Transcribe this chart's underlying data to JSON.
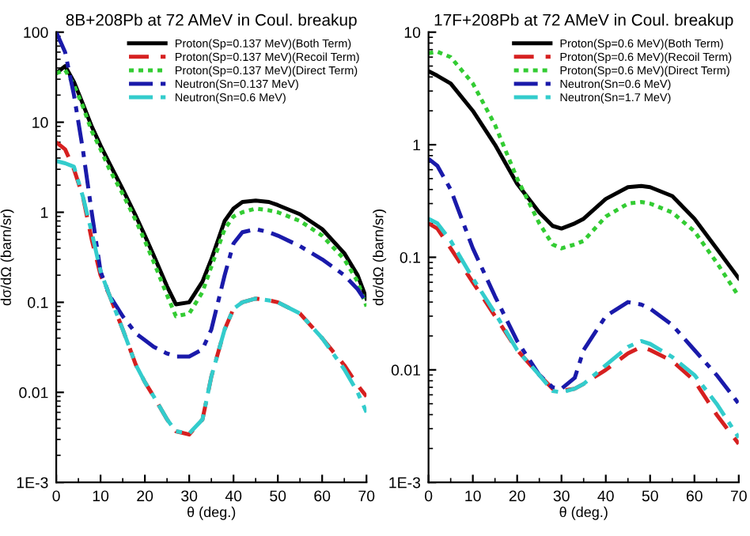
{
  "chart_data": [
    {
      "type": "line",
      "title": "8B+208Pb at 72 AMeV in Coul. breakup",
      "xlabel": "θ (deg.)",
      "ylabel": "dσ/dΩ (barn/sr)",
      "log": "y",
      "xlim": [
        0,
        70
      ],
      "xticks": [
        0,
        10,
        20,
        30,
        40,
        50,
        60,
        70
      ],
      "ylim": [
        0.001,
        100
      ],
      "yticks": [
        {
          "value": 0.001,
          "label": "1E-3"
        },
        0.01,
        0.1,
        1,
        10,
        100
      ],
      "legend": "top right",
      "grid": false,
      "x": [
        0,
        2,
        4,
        6,
        8,
        10,
        12,
        15,
        18,
        20,
        22,
        25,
        27,
        30,
        33,
        35,
        38,
        40,
        42,
        45,
        48,
        50,
        55,
        60,
        65,
        68,
        70
      ],
      "series": [
        {
          "name": "Proton(Sp=0.137 MeV)(Both Term)",
          "color": "#000000",
          "line_style": "solid",
          "values": [
            35,
            42,
            28,
            16,
            9,
            5.5,
            3.5,
            1.8,
            0.9,
            0.55,
            0.33,
            0.15,
            0.095,
            0.1,
            0.17,
            0.3,
            0.8,
            1.1,
            1.3,
            1.35,
            1.3,
            1.2,
            0.95,
            0.65,
            0.35,
            0.2,
            0.11
          ]
        },
        {
          "name": "Proton(Sp=0.137 MeV)(Recoil Term)",
          "color": "#d62020",
          "line_style": "dashed",
          "values": [
            6,
            5,
            3,
            1.5,
            0.5,
            0.2,
            0.12,
            0.05,
            0.02,
            0.013,
            0.009,
            0.005,
            0.0037,
            0.0034,
            0.005,
            0.015,
            0.05,
            0.085,
            0.1,
            0.11,
            0.105,
            0.1,
            0.075,
            0.04,
            0.02,
            0.012,
            0.009
          ]
        },
        {
          "name": "Proton(Sp=0.137 MeV)(Direct Term)",
          "color": "#33cc33",
          "line_style": "dotted",
          "values": [
            35,
            38,
            26,
            15,
            8,
            5,
            3,
            1.6,
            0.8,
            0.48,
            0.28,
            0.12,
            0.07,
            0.075,
            0.13,
            0.25,
            0.65,
            0.9,
            1.0,
            1.1,
            1.05,
            1.0,
            0.8,
            0.55,
            0.3,
            0.17,
            0.09
          ]
        },
        {
          "name": "Neutron(Sn=0.137 MeV)",
          "color": "#1a1aaa",
          "line_style": "dashdot",
          "values": [
            100,
            60,
            20,
            5,
            1,
            0.22,
            0.12,
            0.07,
            0.045,
            0.038,
            0.032,
            0.027,
            0.025,
            0.025,
            0.03,
            0.05,
            0.2,
            0.45,
            0.6,
            0.65,
            0.6,
            0.55,
            0.42,
            0.3,
            0.2,
            0.14,
            0.1
          ]
        },
        {
          "name": "Neutron(Sn=0.6 MeV)",
          "color": "#33cccc",
          "line_style": "dashdot",
          "values": [
            3.7,
            3.5,
            3.2,
            1.5,
            0.6,
            0.22,
            0.12,
            0.05,
            0.02,
            0.013,
            0.009,
            0.005,
            0.0037,
            0.0035,
            0.005,
            0.015,
            0.05,
            0.085,
            0.1,
            0.11,
            0.105,
            0.1,
            0.075,
            0.04,
            0.018,
            0.01,
            0.006
          ]
        }
      ]
    },
    {
      "type": "line",
      "title": "17F+208Pb at 72 AMeV in Coul. breakup",
      "xlabel": "θ (deg.)",
      "ylabel": "dσ/dΩ (barn/sr)",
      "log": "y",
      "xlim": [
        0,
        70
      ],
      "xticks": [
        0,
        10,
        20,
        30,
        40,
        50,
        60,
        70
      ],
      "ylim": [
        0.001,
        10
      ],
      "yticks": [
        {
          "value": 0.001,
          "label": "1E-3"
        },
        0.01,
        0.1,
        1,
        10
      ],
      "legend": "top right",
      "grid": false,
      "x": [
        0,
        2,
        5,
        10,
        15,
        20,
        25,
        28,
        30,
        33,
        35,
        40,
        45,
        48,
        50,
        55,
        60,
        65,
        70
      ],
      "series": [
        {
          "name": "Proton(Sp=0.6 MeV)(Both Term)",
          "color": "#000000",
          "line_style": "solid",
          "values": [
            4.5,
            4.1,
            3.5,
            2,
            1.0,
            0.45,
            0.25,
            0.19,
            0.18,
            0.2,
            0.22,
            0.33,
            0.42,
            0.43,
            0.42,
            0.35,
            0.22,
            0.12,
            0.065
          ]
        },
        {
          "name": "Proton(Sp=0.6 MeV)(Recoil Term)",
          "color": "#d62020",
          "line_style": "dashed",
          "values": [
            0.2,
            0.18,
            0.12,
            0.06,
            0.03,
            0.015,
            0.009,
            0.0068,
            0.0065,
            0.0068,
            0.0075,
            0.01,
            0.014,
            0.016,
            0.015,
            0.012,
            0.008,
            0.004,
            0.0022
          ]
        },
        {
          "name": "Proton(Sp=0.6 MeV)(Direct Term)",
          "color": "#33cc33",
          "line_style": "dotted",
          "values": [
            6.5,
            6.7,
            6,
            3.5,
            1.5,
            0.5,
            0.2,
            0.13,
            0.12,
            0.13,
            0.14,
            0.23,
            0.3,
            0.31,
            0.3,
            0.25,
            0.17,
            0.09,
            0.045
          ]
        },
        {
          "name": "Neutron(Sn=0.6 MeV)",
          "color": "#1a1aaa",
          "line_style": "dashdot",
          "values": [
            0.75,
            0.65,
            0.4,
            0.12,
            0.045,
            0.018,
            0.009,
            0.007,
            0.0068,
            0.0085,
            0.015,
            0.03,
            0.04,
            0.038,
            0.035,
            0.025,
            0.015,
            0.009,
            0.005
          ]
        },
        {
          "name": "Neutron(Sn=1.7 MeV)",
          "color": "#33cccc",
          "line_style": "dashdot",
          "values": [
            0.22,
            0.2,
            0.14,
            0.065,
            0.032,
            0.015,
            0.009,
            0.0065,
            0.0063,
            0.0068,
            0.0075,
            0.011,
            0.016,
            0.018,
            0.017,
            0.013,
            0.009,
            0.005,
            0.0025
          ]
        }
      ]
    }
  ]
}
